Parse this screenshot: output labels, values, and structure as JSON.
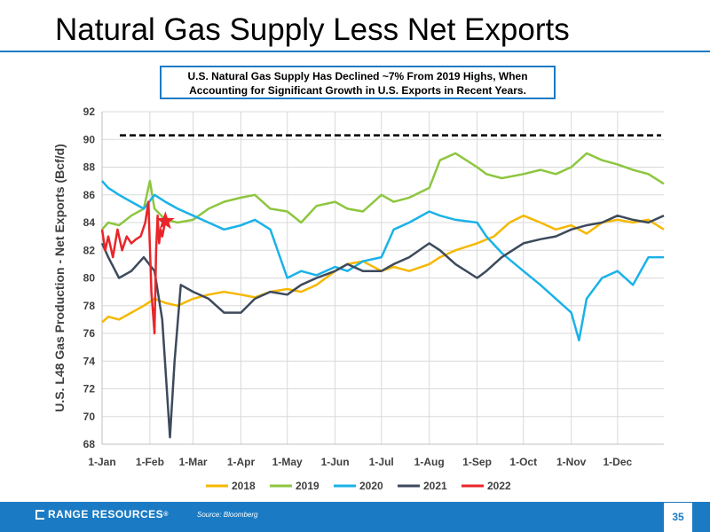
{
  "slide": {
    "title": "Natural Gas Supply Less Net Exports",
    "callout_line1": "U.S. Natural Gas Supply Has Declined ~7% From 2019 Highs, When",
    "callout_line2": "Accounting for Significant Growth in U.S. Exports in Recent Years.",
    "brand": "RANGE RESOURCES",
    "brand_mark": "®",
    "source": "Source: Bloomberg",
    "page_number": "35",
    "colors": {
      "accent": "#1a7bc4"
    }
  },
  "chart_data": {
    "type": "line",
    "ylabel": "U.S. L48 Gas Production - Net Exports (Bcf/d)",
    "xlabel": "",
    "ylim": [
      68,
      92
    ],
    "yticks": [
      68,
      70,
      72,
      74,
      76,
      78,
      80,
      82,
      84,
      86,
      88,
      90,
      92
    ],
    "xlim": [
      1,
      365
    ],
    "xticks": [
      {
        "day": 1,
        "label": "1-Jan"
      },
      {
        "day": 32,
        "label": "1-Feb"
      },
      {
        "day": 60,
        "label": "1-Mar"
      },
      {
        "day": 91,
        "label": "1-Apr"
      },
      {
        "day": 121,
        "label": "1-May"
      },
      {
        "day": 152,
        "label": "1-Jun"
      },
      {
        "day": 182,
        "label": "1-Jul"
      },
      {
        "day": 213,
        "label": "1-Aug"
      },
      {
        "day": 244,
        "label": "1-Sep"
      },
      {
        "day": 274,
        "label": "1-Oct"
      },
      {
        "day": 305,
        "label": "1-Nov"
      },
      {
        "day": 335,
        "label": "1-Dec"
      }
    ],
    "grid": true,
    "legend_position": "bottom",
    "reference_line": {
      "value": 90.3,
      "style": "dashed",
      "color": "#000000"
    },
    "marker": {
      "day": 42,
      "value": 84.1,
      "shape": "star",
      "color": "#e8262a"
    },
    "series": [
      {
        "name": "2018",
        "color": "#f5b800",
        "x": [
          1,
          5,
          12,
          20,
          28,
          35,
          42,
          50,
          60,
          70,
          80,
          91,
          100,
          110,
          121,
          130,
          140,
          152,
          160,
          170,
          182,
          190,
          200,
          213,
          220,
          230,
          244,
          255,
          265,
          274,
          285,
          295,
          305,
          315,
          325,
          335,
          345,
          355,
          365
        ],
        "y": [
          76.8,
          77.2,
          77.0,
          77.5,
          78.0,
          78.5,
          78.2,
          78.0,
          78.5,
          78.8,
          79.0,
          78.8,
          78.6,
          79.0,
          79.2,
          79.0,
          79.5,
          80.5,
          81.0,
          81.2,
          80.5,
          80.8,
          80.5,
          81.0,
          81.5,
          82.0,
          82.5,
          83.0,
          84.0,
          84.5,
          84.0,
          83.5,
          83.8,
          83.2,
          84.0,
          84.2,
          84.0,
          84.2,
          83.5
        ]
      },
      {
        "name": "2019",
        "color": "#8dc63f",
        "x": [
          1,
          5,
          12,
          20,
          28,
          32,
          35,
          42,
          50,
          60,
          70,
          80,
          91,
          100,
          110,
          121,
          130,
          140,
          152,
          160,
          170,
          182,
          190,
          200,
          213,
          220,
          230,
          244,
          250,
          260,
          274,
          285,
          295,
          305,
          315,
          325,
          335,
          345,
          355,
          365
        ],
        "y": [
          83.5,
          84.0,
          83.8,
          84.5,
          85.0,
          87.0,
          85.0,
          84.2,
          84.0,
          84.2,
          85.0,
          85.5,
          85.8,
          86.0,
          85.0,
          84.8,
          84.0,
          85.2,
          85.5,
          85.0,
          84.8,
          86.0,
          85.5,
          85.8,
          86.5,
          88.5,
          89.0,
          88.0,
          87.5,
          87.2,
          87.5,
          87.8,
          87.5,
          88.0,
          89.0,
          88.5,
          88.2,
          87.8,
          87.5,
          86.8
        ]
      },
      {
        "name": "2020",
        "color": "#1ab2e8",
        "x": [
          1,
          5,
          12,
          20,
          28,
          35,
          42,
          50,
          60,
          70,
          80,
          91,
          100,
          110,
          121,
          130,
          140,
          152,
          160,
          170,
          182,
          190,
          200,
          213,
          220,
          230,
          244,
          250,
          260,
          274,
          285,
          295,
          305,
          310,
          315,
          325,
          335,
          345,
          355,
          365
        ],
        "y": [
          87.0,
          86.5,
          86.0,
          85.5,
          85.0,
          86.0,
          85.5,
          85.0,
          84.5,
          84.0,
          83.5,
          83.8,
          84.2,
          83.5,
          80.0,
          80.5,
          80.2,
          80.8,
          80.5,
          81.2,
          81.5,
          83.5,
          84.0,
          84.8,
          84.5,
          84.2,
          84.0,
          83.0,
          81.8,
          80.5,
          79.5,
          78.5,
          77.5,
          75.5,
          78.5,
          80.0,
          80.5,
          79.5,
          81.5,
          81.5
        ]
      },
      {
        "name": "2021",
        "color": "#3d4a5c",
        "x": [
          1,
          5,
          12,
          20,
          28,
          35,
          40,
          45,
          48,
          52,
          60,
          70,
          80,
          91,
          100,
          110,
          121,
          130,
          140,
          152,
          160,
          170,
          182,
          190,
          200,
          213,
          220,
          230,
          244,
          250,
          260,
          274,
          285,
          295,
          305,
          315,
          325,
          335,
          345,
          355,
          365
        ],
        "y": [
          82.5,
          81.5,
          80.0,
          80.5,
          81.5,
          80.5,
          77.0,
          68.5,
          74.0,
          79.5,
          79.0,
          78.5,
          77.5,
          77.5,
          78.5,
          79.0,
          78.8,
          79.5,
          80.0,
          80.5,
          81.0,
          80.5,
          80.5,
          81.0,
          81.5,
          82.5,
          82.0,
          81.0,
          80.0,
          80.5,
          81.5,
          82.5,
          82.8,
          83.0,
          83.5,
          83.8,
          84.0,
          84.5,
          84.2,
          84.0,
          84.5
        ]
      },
      {
        "name": "2022",
        "color": "#e8262a",
        "x": [
          1,
          3,
          5,
          8,
          11,
          14,
          17,
          20,
          23,
          26,
          29,
          31,
          33,
          35,
          36,
          37,
          38,
          39,
          40,
          42
        ],
        "y": [
          83.5,
          82.0,
          83.0,
          81.5,
          83.5,
          82.0,
          83.0,
          82.5,
          82.8,
          83.0,
          84.0,
          85.5,
          79.0,
          76.0,
          82.0,
          84.5,
          82.5,
          83.5,
          83.0,
          84.1
        ]
      }
    ]
  }
}
